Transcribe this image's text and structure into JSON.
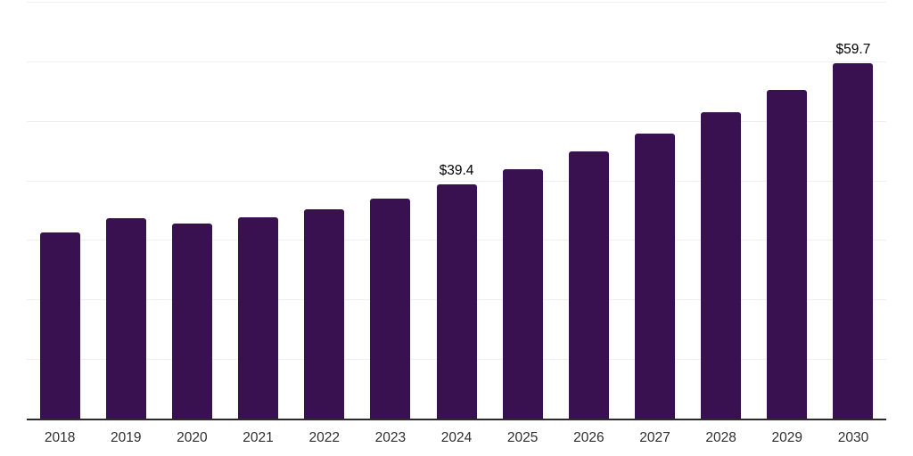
{
  "chart_data": {
    "type": "bar",
    "title": "",
    "xlabel": "",
    "ylabel": "",
    "categories": [
      "2018",
      "2019",
      "2020",
      "2021",
      "2022",
      "2023",
      "2024",
      "2025",
      "2026",
      "2027",
      "2028",
      "2029",
      "2030"
    ],
    "values": [
      31.3,
      33.7,
      32.8,
      33.8,
      35.1,
      36.9,
      39.4,
      41.9,
      44.8,
      47.9,
      51.5,
      55.2,
      59.7
    ],
    "data_labels": [
      {
        "category": "2024",
        "text": "$39.4"
      },
      {
        "category": "2030",
        "text": "$59.7"
      }
    ],
    "ylim": [
      0,
      70
    ],
    "gridline_step": 10,
    "grid": "horizontal-only",
    "legend": "none",
    "y_tick_labels": "none",
    "colors": {
      "bar": "#391150",
      "axis_line": "#2b2b2b",
      "gridline": "#efefef",
      "tick_label": "#2e2e2e",
      "data_label": "#000000",
      "background": "#ffffff"
    }
  }
}
